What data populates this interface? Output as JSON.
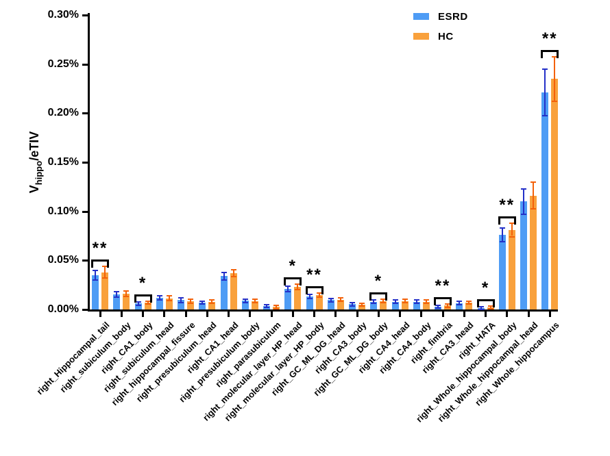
{
  "y_axis_title": {
    "prefix": "V",
    "subscript": "hippo",
    "suffix": "/eTIV"
  },
  "chart_data": {
    "type": "bar",
    "title": "",
    "xlabel": "",
    "ylabel": "V_hippo/eTIV",
    "units": "percent of eTIV",
    "grid": false,
    "legend_position": "top-right",
    "ylim": [
      0,
      0.3
    ],
    "ytick_values": [
      0,
      0.05,
      0.1,
      0.15,
      0.2,
      0.25,
      0.3
    ],
    "ytick_labels": [
      "0.00%",
      "0.05%",
      "0.10%",
      "0.15%",
      "0.20%",
      "0.25%",
      "0.30%"
    ],
    "categories": [
      "right_Hippocampal_tail",
      "right_subiculum_body",
      "right_CA1_body",
      "right_subiculum_head",
      "right_hippocampal_fissure",
      "right_presubiculum_head",
      "right_CA1_head",
      "right_presubiculum_body",
      "right_parasubiculum",
      "right_molecular_layer_HP_head",
      "right_molecular_layer_HP_body",
      "right_GC_ML_DG_head",
      "right_CA3_body",
      "right_GC_ML_DG_body",
      "right_CA4_head",
      "right_CA4_body",
      "right_fimbria",
      "right_CA3_head",
      "right_HATA",
      "right_Whole_hippocampal_body",
      "right_Whole_hippocampal_head",
      "right_Whole_hippocampus"
    ],
    "series": [
      {
        "name": "ESRD",
        "color": "#4E9CF5",
        "error_color": "#2430C8",
        "values": [
          0.035,
          0.0155,
          0.006,
          0.012,
          0.0095,
          0.007,
          0.034,
          0.009,
          0.0035,
          0.021,
          0.0135,
          0.0095,
          0.0055,
          0.008,
          0.008,
          0.008,
          0.003,
          0.0065,
          0.0015,
          0.076,
          0.11,
          0.221
        ],
        "errors": [
          0.004,
          0.002,
          0.001,
          0.0015,
          0.0015,
          0.001,
          0.003,
          0.001,
          0.001,
          0.002,
          0.0015,
          0.001,
          0.001,
          0.001,
          0.001,
          0.001,
          0.0008,
          0.001,
          0.0005,
          0.006,
          0.012,
          0.023
        ]
      },
      {
        "name": "HC",
        "color": "#F9A13C",
        "error_color": "#F3610A",
        "values": [
          0.038,
          0.016,
          0.007,
          0.0115,
          0.0085,
          0.008,
          0.037,
          0.0085,
          0.0025,
          0.023,
          0.0145,
          0.01,
          0.005,
          0.0085,
          0.0085,
          0.008,
          0.004,
          0.007,
          0.002,
          0.081,
          0.116,
          0.235
        ],
        "errors": [
          0.005,
          0.002,
          0.001,
          0.0015,
          0.0012,
          0.001,
          0.0025,
          0.001,
          0.0008,
          0.002,
          0.0015,
          0.001,
          0.0008,
          0.001,
          0.001,
          0.001,
          0.001,
          0.001,
          0.0008,
          0.006,
          0.013,
          0.022
        ]
      }
    ],
    "significance": [
      "**",
      null,
      "*",
      null,
      null,
      null,
      null,
      null,
      null,
      "*",
      "**",
      null,
      null,
      "*",
      null,
      null,
      "**",
      null,
      "*",
      "**",
      null,
      "**"
    ],
    "axis_color": "#000000"
  }
}
